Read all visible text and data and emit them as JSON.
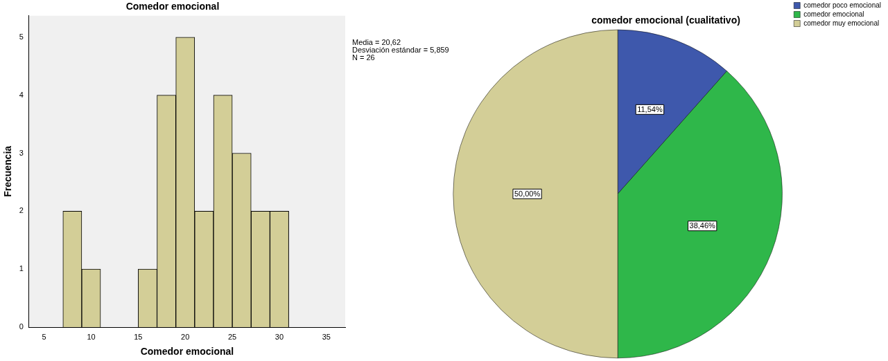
{
  "chart_data": [
    {
      "type": "histogram",
      "title": "Comedor emocional",
      "xlabel": "Comedor emocional",
      "ylabel": "Frecuencia",
      "bins": [
        7,
        9,
        11,
        13,
        15,
        17,
        19,
        21,
        23,
        25,
        27,
        29,
        31
      ],
      "values": [
        2,
        1,
        0,
        0,
        1,
        4,
        5,
        2,
        4,
        3,
        2,
        2
      ],
      "color": "#d3ce97",
      "xlim": [
        3.4,
        37
      ],
      "xticks": [
        5,
        10,
        15,
        20,
        25,
        30,
        35
      ],
      "ylim": [
        0,
        5.37
      ],
      "yticks": [
        0,
        1,
        2,
        3,
        4,
        5
      ],
      "grid": false,
      "legend": false,
      "annotations": [
        "Media = 20,62",
        "Desviación estándar = 5,859",
        "N = 26"
      ]
    },
    {
      "type": "pie",
      "title": "comedor emocional (cualitativo)",
      "categories": [
        "comedor poco emocional",
        "comedor emocional",
        "comedor muy emocional"
      ],
      "values": [
        11.54,
        38.46,
        50.0
      ],
      "colors": [
        "#3e58ac",
        "#2fb74a",
        "#d3ce97"
      ],
      "value_labels": [
        "11,54%",
        "38,46%",
        "50,00%"
      ],
      "legend": "top right"
    }
  ]
}
